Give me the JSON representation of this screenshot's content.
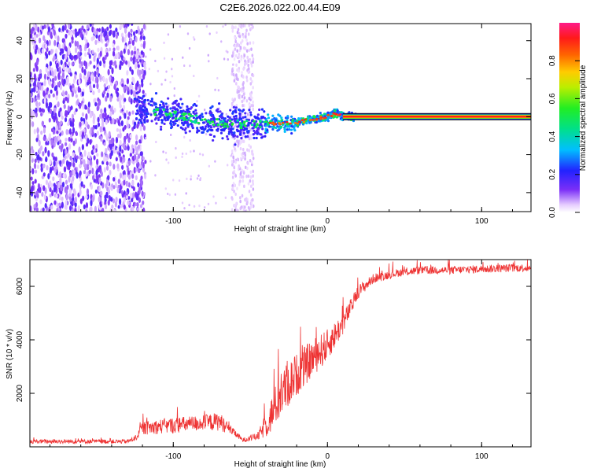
{
  "figure_title": "C2E6.2026.022.00.44.E09",
  "chart_data": [
    {
      "type": "heatmap",
      "title": "",
      "xlabel": "Height of straight line (km)",
      "ylabel": "Frequency (Hz)",
      "xlim": [
        -193,
        132
      ],
      "ylim": [
        -50,
        49
      ],
      "x_ticks": [
        -100,
        0,
        100
      ],
      "y_ticks": [
        -40,
        -20,
        0,
        20,
        40
      ],
      "colorbar": {
        "label": "Normalized spectral amplitude",
        "range": [
          0.0,
          1.0
        ],
        "ticks": [
          0.0,
          0.2,
          0.4,
          0.6,
          0.8
        ],
        "tick_labels": [
          "0.0",
          "0.2",
          "0.4",
          "0.6",
          "0.8"
        ]
      },
      "features": [
        {
          "name": "scattered noise",
          "x_range": [
            -193,
            -118
          ],
          "freq_range": [
            -50,
            49
          ],
          "amplitude": 0.1
        },
        {
          "name": "noise band",
          "x_range": [
            -62,
            -48
          ],
          "freq_range": [
            -50,
            49
          ],
          "amplitude": 0.03
        },
        {
          "name": "tone trace",
          "x": [
            -125,
            -100,
            -80,
            -60,
            -40,
            -20,
            0,
            5,
            10,
            20
          ],
          "freq": [
            4,
            1,
            -2,
            -4,
            -4,
            -3,
            0,
            2,
            0,
            0
          ],
          "amplitude": 0.3
        },
        {
          "name": "steady carrier",
          "x_range": [
            20,
            132
          ],
          "freq": 0,
          "amplitude": 1.0
        }
      ]
    },
    {
      "type": "line",
      "title": "",
      "xlabel": "Height of straight line (km)",
      "ylabel": "SNR (10 * v/v)",
      "xlim": [
        -193,
        132
      ],
      "ylim": [
        0,
        7000
      ],
      "x_ticks": [
        -100,
        0,
        100
      ],
      "y_ticks": [
        2000,
        4000,
        6000
      ],
      "series": [
        {
          "name": "SNR",
          "color": "#ee3333",
          "envelope_x": [
            -193,
            -130,
            -125,
            -120,
            -100,
            -80,
            -70,
            -62,
            -55,
            -45,
            -38,
            -30,
            -20,
            -10,
            0,
            10,
            20,
            30,
            45,
            60,
            80,
            100,
            132
          ],
          "envelope_y": [
            200,
            200,
            300,
            700,
            800,
            900,
            950,
            600,
            250,
            400,
            1000,
            2000,
            2700,
            3300,
            3800,
            4600,
            5800,
            6300,
            6500,
            6600,
            6600,
            6650,
            6700
          ],
          "noise": [
            80,
            80,
            100,
            250,
            300,
            300,
            350,
            150,
            80,
            150,
            600,
            900,
            800,
            700,
            600,
            400,
            250,
            180,
            150,
            150,
            150,
            150,
            150
          ]
        }
      ]
    }
  ]
}
